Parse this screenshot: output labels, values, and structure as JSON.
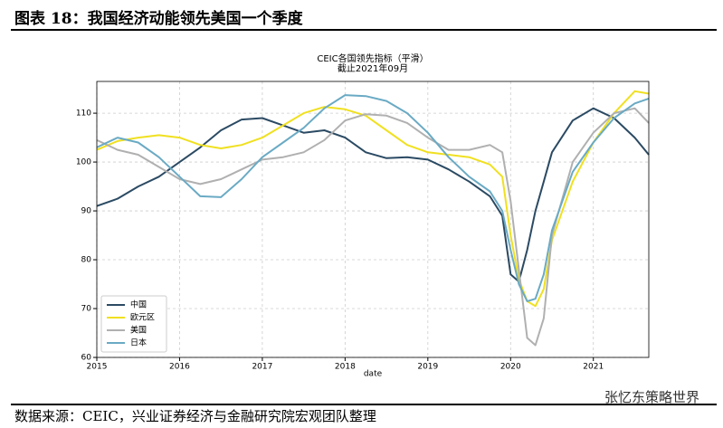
{
  "header": "图表 18：我国经济动能领先美国一个季度",
  "source": "数据来源：CEIC，兴业证券经济与金融研究院宏观团队整理",
  "watermark": "张忆东策略世界",
  "chart_data": {
    "type": "line",
    "title": "CEIC各国领先指标（平滑）",
    "subtitle": "截止2021年09月",
    "x_label": "date",
    "x": [
      2015,
      2015.25,
      2015.5,
      2015.75,
      2016,
      2016.25,
      2016.5,
      2016.75,
      2017,
      2017.25,
      2017.5,
      2017.75,
      2018,
      2018.25,
      2018.5,
      2018.75,
      2019,
      2019.25,
      2019.5,
      2019.75,
      2019.9,
      2020,
      2020.1,
      2020.2,
      2020.3,
      2020.4,
      2020.5,
      2020.75,
      2021,
      2021.25,
      2021.5,
      2021.67
    ],
    "series": [
      {
        "name": "中国",
        "color": "#2b4a63",
        "values": [
          91,
          92.5,
          95,
          97,
          100,
          103,
          106.5,
          108.7,
          109,
          107.5,
          106,
          106.5,
          105,
          102,
          100.8,
          101,
          100.5,
          98.5,
          96,
          93,
          89,
          77,
          75.5,
          82,
          90,
          96,
          102,
          108.5,
          111,
          109,
          105,
          101.5
        ]
      },
      {
        "name": "欧元区",
        "color": "#f0e020",
        "values": [
          102.5,
          104.3,
          105,
          105.5,
          105,
          103.5,
          102.8,
          103.5,
          105,
          107.5,
          110,
          111.3,
          110.8,
          109.5,
          106.5,
          103.5,
          102,
          101.5,
          101,
          99.5,
          97,
          85,
          76,
          71.5,
          70.5,
          74,
          84,
          96,
          104,
          110,
          114.5,
          114
        ]
      },
      {
        "name": "美国",
        "color": "#b0b0b0",
        "values": [
          104.5,
          102.5,
          101.5,
          99,
          96.5,
          95.5,
          96.5,
          98.5,
          100.5,
          101,
          102,
          104.5,
          108.5,
          109.8,
          109.5,
          108,
          105,
          102.5,
          102.5,
          103.5,
          102,
          92,
          78,
          64,
          62.5,
          68,
          85,
          100,
          106,
          110,
          111,
          108
        ]
      },
      {
        "name": "日本",
        "color": "#6aaac4",
        "values": [
          103,
          105,
          104,
          101,
          97,
          93,
          92.8,
          96.5,
          101,
          104,
          107,
          111,
          113.7,
          113.5,
          112.5,
          110,
          106,
          101,
          97,
          94,
          90,
          82,
          75,
          71.5,
          72,
          77,
          86,
          98,
          104,
          109,
          112,
          113
        ]
      }
    ],
    "xlim": [
      2015,
      2021.67
    ],
    "xticks": [
      2015,
      2016,
      2017,
      2018,
      2019,
      2020,
      2021
    ],
    "ylim": [
      60,
      116.5
    ],
    "yticks": [
      60,
      70,
      80,
      90,
      100,
      110
    ],
    "grid": true,
    "legend": "lower left"
  }
}
